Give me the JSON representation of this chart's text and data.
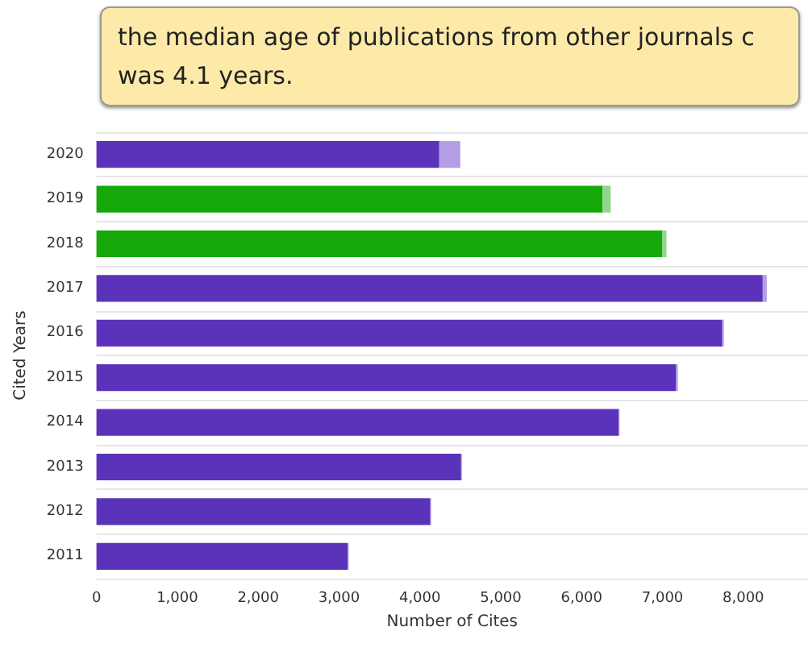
{
  "chart_data": {
    "type": "bar",
    "orientation": "horizontal",
    "stacked": true,
    "annotations": [
      "the median age of publications from other journals c was 4.1 years."
    ],
    "xlabel": "Number of Cites",
    "ylabel": "Cited Years",
    "categories": [
      "2020",
      "2019",
      "2018",
      "2017",
      "2016",
      "2015",
      "2014",
      "2013",
      "2012",
      "2011"
    ],
    "series": [
      {
        "colors": [
          "#5b33bb",
          "#16a80a",
          "#16a80a",
          "#5b33bb",
          "#5b33bb",
          "#5b33bb",
          "#5b33bb",
          "#5b33bb",
          "#5b33bb",
          "#5b33bb"
        ],
        "values": [
          4240,
          6260,
          7000,
          8240,
          7740,
          7170,
          6460,
          4510,
          4130,
          3110
        ]
      },
      {
        "colors": [
          "#b39ee6",
          "#8fd88a",
          "#8fd88a",
          "#b39ee6",
          "#b39ee6",
          "#b39ee6",
          "#b39ee6",
          "#b39ee6",
          "#b39ee6",
          "#b39ee6"
        ],
        "values": [
          260,
          100,
          50,
          50,
          20,
          20,
          10,
          10,
          10,
          10
        ]
      }
    ],
    "xlim": [
      0,
      8800
    ],
    "xticks": [
      0,
      {
        "value": 1000,
        "label": "1,000"
      },
      {
        "value": 2000,
        "label": "2,000"
      },
      {
        "value": 3000,
        "label": "3,000"
      },
      {
        "value": 4000,
        "label": "4,000"
      },
      {
        "value": 5000,
        "label": "5,000"
      },
      {
        "value": 6000,
        "label": "6,000"
      },
      {
        "value": 7000,
        "label": "7,000"
      },
      {
        "value": 8000,
        "label": "8,000"
      }
    ],
    "grid": "y"
  }
}
